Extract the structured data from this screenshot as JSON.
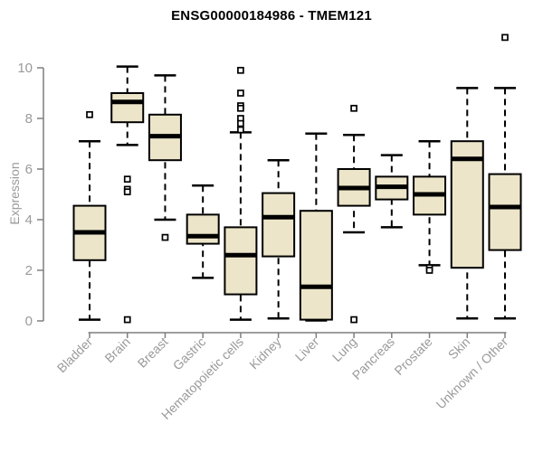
{
  "colors": {
    "background": "#ffffff",
    "box_fill": "#ece5c9",
    "box_border": "#000000",
    "whisker": "#000000",
    "outlier_fill": "#ffffff",
    "axis_line": "#7f7f7f",
    "tick_label": "#9a9a9a",
    "title": "#000000"
  },
  "chart_data": {
    "type": "boxplot",
    "title": "ENSG00000184986 - TMEM121",
    "xlabel": "",
    "ylabel": "Expression",
    "ylim": [
      0,
      10
    ],
    "yticks": [
      0,
      2,
      4,
      6,
      8,
      10
    ],
    "grid": false,
    "legend": false,
    "categories": [
      "Bladder",
      "Brain",
      "Breast",
      "Gastric",
      "Hematopoietic cells",
      "Kidney",
      "Liver",
      "Lung",
      "Pancreas",
      "Prostate",
      "Skin",
      "Unknown / Other"
    ],
    "boxes": [
      {
        "name": "Bladder",
        "low": 0.05,
        "q1": 2.4,
        "median": 3.5,
        "q3": 4.55,
        "high": 7.1,
        "outliers": [
          8.15
        ]
      },
      {
        "name": "Brain",
        "low": 6.95,
        "q1": 7.85,
        "median": 8.65,
        "q3": 9.0,
        "high": 10.05,
        "outliers": [
          5.6,
          5.2,
          5.1,
          0.05
        ]
      },
      {
        "name": "Breast",
        "low": 4.0,
        "q1": 6.35,
        "median": 7.3,
        "q3": 8.15,
        "high": 9.7,
        "outliers": [
          3.3
        ]
      },
      {
        "name": "Gastric",
        "low": 1.7,
        "q1": 3.05,
        "median": 3.35,
        "q3": 4.2,
        "high": 5.35,
        "outliers": []
      },
      {
        "name": "Hematopoietic cells",
        "low": 0.05,
        "q1": 1.05,
        "median": 2.6,
        "q3": 3.7,
        "high": 7.45,
        "outliers": [
          9.9,
          9.0,
          8.5,
          8.4,
          8.0,
          7.8,
          7.55
        ]
      },
      {
        "name": "Kidney",
        "low": 0.1,
        "q1": 2.55,
        "median": 4.1,
        "q3": 5.05,
        "high": 6.35,
        "outliers": []
      },
      {
        "name": "Liver",
        "low": 0.02,
        "q1": 0.05,
        "median": 1.35,
        "q3": 4.35,
        "high": 7.4,
        "outliers": []
      },
      {
        "name": "Lung",
        "low": 3.5,
        "q1": 4.55,
        "median": 5.25,
        "q3": 6.0,
        "high": 7.35,
        "outliers": [
          8.4,
          0.05
        ]
      },
      {
        "name": "Pancreas",
        "low": 3.7,
        "q1": 4.8,
        "median": 5.3,
        "q3": 5.7,
        "high": 6.55,
        "outliers": []
      },
      {
        "name": "Prostate",
        "low": 2.2,
        "q1": 4.2,
        "median": 5.0,
        "q3": 5.7,
        "high": 7.1,
        "outliers": [
          2.1,
          2.0
        ]
      },
      {
        "name": "Skin",
        "low": 0.1,
        "q1": 2.1,
        "median": 6.4,
        "q3": 7.1,
        "high": 9.2,
        "outliers": []
      },
      {
        "name": "Unknown / Other",
        "low": 0.1,
        "q1": 2.8,
        "median": 4.5,
        "q3": 5.8,
        "high": 9.2,
        "outliers": [
          11.2
        ]
      }
    ]
  }
}
